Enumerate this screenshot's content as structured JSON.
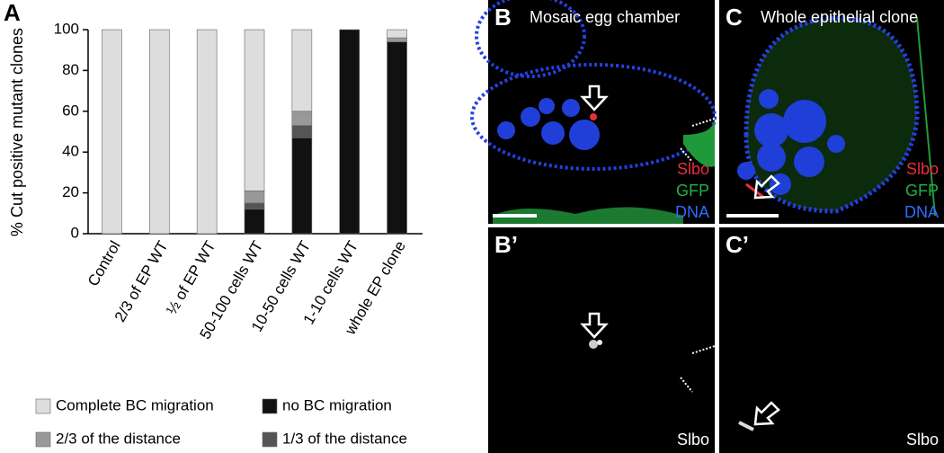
{
  "chart_data": {
    "type": "bar",
    "panel_label": "A",
    "y_label": "% Cut positive mutant clones",
    "categories": [
      "Control",
      "2/3 of EP WT",
      "½ of EP WT",
      "50-100 cells WT",
      "10-50 cells WT",
      "1-10 cells WT",
      "whole EP clone"
    ],
    "series": [
      {
        "name": "no BC migration",
        "color": "#111111",
        "values": [
          0,
          0,
          0,
          12,
          47,
          100,
          94
        ]
      },
      {
        "name": "1/3 of the distance",
        "color": "#555555",
        "values": [
          0,
          0,
          0,
          3,
          6,
          0,
          0
        ]
      },
      {
        "name": "2/3 of the distance",
        "color": "#999999",
        "values": [
          0,
          0,
          0,
          6,
          7,
          0,
          2
        ]
      },
      {
        "name": "Complete BC migration",
        "color": "#dddddd",
        "values": [
          100,
          100,
          100,
          79,
          40,
          0,
          4
        ]
      }
    ],
    "stacked": true,
    "ylim": [
      0,
      100
    ],
    "yticks": [
      0,
      20,
      40,
      60,
      80,
      100
    ]
  },
  "panels": [
    {
      "label": "B",
      "title": "Mosaic egg chamber",
      "channels": [
        {
          "name": "Slbo",
          "color": "#e8303a"
        },
        {
          "name": "GFP",
          "color": "#22b04a"
        },
        {
          "name": "DNA",
          "color": "#2f6cff"
        }
      ]
    },
    {
      "label": "C",
      "title": "Whole epithelial clone",
      "channels": [
        {
          "name": "Slbo",
          "color": "#e8303a"
        },
        {
          "name": "GFP",
          "color": "#22b04a"
        },
        {
          "name": "DNA",
          "color": "#2f6cff"
        }
      ]
    },
    {
      "label": "B’",
      "channels": [
        {
          "name": "Slbo",
          "color": "#ffffff"
        }
      ]
    },
    {
      "label": "C’",
      "channels": [
        {
          "name": "Slbo",
          "color": "#ffffff"
        }
      ]
    }
  ]
}
